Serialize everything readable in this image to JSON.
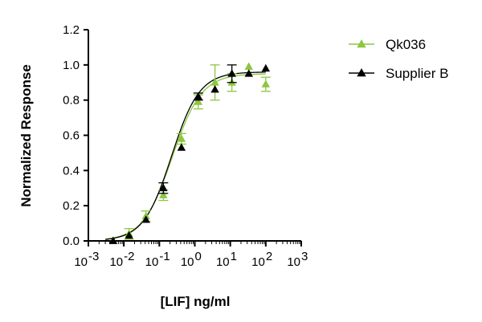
{
  "chart_data": {
    "type": "scatter",
    "xlabel": "[LIF] ng/ml",
    "ylabel": "Normalized Response",
    "x_scale": "log10",
    "xlim": [
      0.001,
      1000
    ],
    "ylim": [
      0,
      1.2
    ],
    "x_ticks": [
      {
        "base": "10",
        "exp": "-3",
        "value": 0.001
      },
      {
        "base": "10",
        "exp": "-2",
        "value": 0.01
      },
      {
        "base": "10",
        "exp": "-1",
        "value": 0.1
      },
      {
        "base": "10",
        "exp": "0",
        "value": 1
      },
      {
        "base": "10",
        "exp": "1",
        "value": 10
      },
      {
        "base": "10",
        "exp": "2",
        "value": 100
      },
      {
        "base": "10",
        "exp": "3",
        "value": 1000
      }
    ],
    "y_ticks": [
      "0.0",
      "0.2",
      "0.4",
      "0.6",
      "0.8",
      "1.0",
      "1.2"
    ],
    "grid": false,
    "legend_position": "top-right",
    "series": [
      {
        "name": "Qk036",
        "color": "#8dc63f",
        "marker": "triangle",
        "points": [
          {
            "x": 0.005,
            "y": 0.0,
            "err": 0.0
          },
          {
            "x": 0.014,
            "y": 0.04,
            "err": 0.03
          },
          {
            "x": 0.042,
            "y": 0.14,
            "err": 0.03
          },
          {
            "x": 0.13,
            "y": 0.26,
            "err": 0.03
          },
          {
            "x": 0.42,
            "y": 0.58,
            "err": 0.03
          },
          {
            "x": 1.25,
            "y": 0.79,
            "err": 0.04
          },
          {
            "x": 3.7,
            "y": 0.9,
            "err": 0.1
          },
          {
            "x": 11.1,
            "y": 0.9,
            "err": 0.05
          },
          {
            "x": 33.3,
            "y": 0.99,
            "err": 0.0
          },
          {
            "x": 100,
            "y": 0.89,
            "err": 0.04
          }
        ],
        "curve": {
          "bottom": 0.0,
          "top": 0.95,
          "ec50": 0.23,
          "hill": 1.05
        }
      },
      {
        "name": "Supplier B",
        "color": "#000000",
        "marker": "triangle",
        "points": [
          {
            "x": 0.005,
            "y": 0.0,
            "err": 0.0
          },
          {
            "x": 0.014,
            "y": 0.03,
            "err": 0.0
          },
          {
            "x": 0.042,
            "y": 0.12,
            "err": 0.0
          },
          {
            "x": 0.13,
            "y": 0.3,
            "err": 0.03
          },
          {
            "x": 0.42,
            "y": 0.53,
            "err": 0.0
          },
          {
            "x": 1.25,
            "y": 0.82,
            "err": 0.02
          },
          {
            "x": 3.7,
            "y": 0.86,
            "err": 0.0
          },
          {
            "x": 11.1,
            "y": 0.95,
            "err": 0.05
          },
          {
            "x": 33.3,
            "y": 0.95,
            "err": 0.0
          },
          {
            "x": 100,
            "y": 0.98,
            "err": 0.0
          }
        ],
        "curve": {
          "bottom": 0.0,
          "top": 0.96,
          "ec50": 0.22,
          "hill": 1.1
        }
      }
    ]
  }
}
